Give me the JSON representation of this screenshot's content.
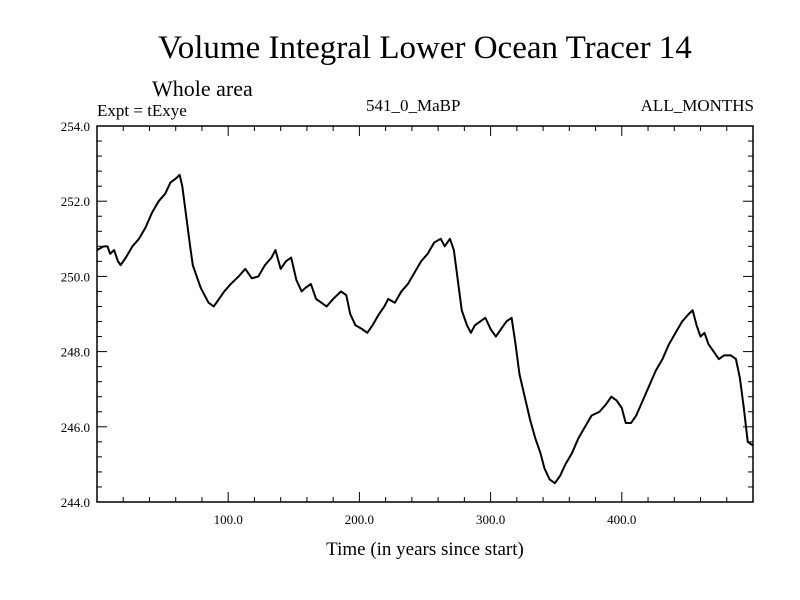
{
  "header": {
    "title": "Volume Integral Lower Ocean Tracer 14",
    "subtitle": "Whole area",
    "expt": "Expt = tExye",
    "center_label": "541_0_MaBP",
    "months": "ALL_MONTHS"
  },
  "chart_data": {
    "type": "line",
    "xlabel": "Time (in years since start)",
    "ylabel": "",
    "xlim": [
      0,
      500
    ],
    "ylim": [
      244.0,
      254.0
    ],
    "x_ticks": [
      100.0,
      200.0,
      300.0,
      400.0
    ],
    "x_tick_labels": [
      "100.0",
      "200.0",
      "300.0",
      "400.0"
    ],
    "y_ticks": [
      244.0,
      246.0,
      248.0,
      250.0,
      252.0,
      254.0
    ],
    "y_tick_labels": [
      "244.0",
      "246.0",
      "248.0",
      "250.0",
      "252.0",
      "254.0"
    ],
    "grid": false,
    "color": "#000000",
    "series": [
      {
        "name": "",
        "points": [
          [
            0,
            250.7
          ],
          [
            5,
            250.8
          ],
          [
            8,
            250.8
          ],
          [
            10,
            250.6
          ],
          [
            13,
            250.7
          ],
          [
            16,
            250.4
          ],
          [
            18,
            250.3
          ],
          [
            22,
            250.5
          ],
          [
            27,
            250.8
          ],
          [
            32,
            251.0
          ],
          [
            37,
            251.3
          ],
          [
            42,
            251.7
          ],
          [
            47,
            252.0
          ],
          [
            52,
            252.2
          ],
          [
            56,
            252.5
          ],
          [
            60,
            252.6
          ],
          [
            63,
            252.7
          ],
          [
            65,
            252.4
          ],
          [
            68,
            251.6
          ],
          [
            71,
            250.8
          ],
          [
            73,
            250.3
          ],
          [
            76,
            250.0
          ],
          [
            79,
            249.7
          ],
          [
            82,
            249.5
          ],
          [
            85,
            249.3
          ],
          [
            89,
            249.2
          ],
          [
            93,
            249.4
          ],
          [
            97,
            249.6
          ],
          [
            102,
            249.8
          ],
          [
            108,
            250.0
          ],
          [
            113,
            250.2
          ],
          [
            118,
            249.95
          ],
          [
            123,
            250.0
          ],
          [
            128,
            250.3
          ],
          [
            133,
            250.5
          ],
          [
            136,
            250.7
          ],
          [
            140,
            250.2
          ],
          [
            144,
            250.4
          ],
          [
            148,
            250.5
          ],
          [
            152,
            249.9
          ],
          [
            156,
            249.6
          ],
          [
            159,
            249.7
          ],
          [
            163,
            249.8
          ],
          [
            167,
            249.4
          ],
          [
            171,
            249.3
          ],
          [
            175,
            249.2
          ],
          [
            180,
            249.4
          ],
          [
            186,
            249.6
          ],
          [
            190,
            249.5
          ],
          [
            193,
            249.0
          ],
          [
            197,
            248.7
          ],
          [
            202,
            248.6
          ],
          [
            206,
            248.5
          ],
          [
            210,
            248.7
          ],
          [
            215,
            249.0
          ],
          [
            219,
            249.2
          ],
          [
            222,
            249.4
          ],
          [
            227,
            249.3
          ],
          [
            232,
            249.6
          ],
          [
            237,
            249.8
          ],
          [
            242,
            250.1
          ],
          [
            247,
            250.4
          ],
          [
            252,
            250.6
          ],
          [
            257,
            250.9
          ],
          [
            262,
            251.0
          ],
          [
            265,
            250.8
          ],
          [
            269,
            251.0
          ],
          [
            272,
            250.7
          ],
          [
            275,
            249.9
          ],
          [
            278,
            249.1
          ],
          [
            282,
            248.7
          ],
          [
            285,
            248.5
          ],
          [
            288,
            248.7
          ],
          [
            292,
            248.8
          ],
          [
            296,
            248.9
          ],
          [
            300,
            248.6
          ],
          [
            304,
            248.4
          ],
          [
            308,
            248.6
          ],
          [
            312,
            248.8
          ],
          [
            316,
            248.9
          ],
          [
            319,
            248.2
          ],
          [
            322,
            247.4
          ],
          [
            326,
            246.8
          ],
          [
            330,
            246.2
          ],
          [
            334,
            245.7
          ],
          [
            338,
            245.3
          ],
          [
            341,
            244.9
          ],
          [
            345,
            244.6
          ],
          [
            349,
            244.5
          ],
          [
            353,
            244.7
          ],
          [
            357,
            245.0
          ],
          [
            362,
            245.3
          ],
          [
            367,
            245.7
          ],
          [
            372,
            246.0
          ],
          [
            377,
            246.3
          ],
          [
            383,
            246.4
          ],
          [
            388,
            246.6
          ],
          [
            392,
            246.8
          ],
          [
            396,
            246.7
          ],
          [
            400,
            246.5
          ],
          [
            403,
            246.1
          ],
          [
            407,
            246.1
          ],
          [
            411,
            246.3
          ],
          [
            416,
            246.7
          ],
          [
            421,
            247.1
          ],
          [
            426,
            247.5
          ],
          [
            431,
            247.8
          ],
          [
            436,
            248.2
          ],
          [
            441,
            248.5
          ],
          [
            446,
            248.8
          ],
          [
            451,
            249.0
          ],
          [
            454,
            249.1
          ],
          [
            457,
            248.7
          ],
          [
            460,
            248.4
          ],
          [
            463,
            248.5
          ],
          [
            466,
            248.2
          ],
          [
            470,
            248.0
          ],
          [
            474,
            247.8
          ],
          [
            478,
            247.9
          ],
          [
            483,
            247.9
          ],
          [
            487,
            247.8
          ],
          [
            490,
            247.3
          ],
          [
            493,
            246.5
          ],
          [
            496,
            245.6
          ],
          [
            500,
            245.5
          ]
        ]
      }
    ]
  }
}
